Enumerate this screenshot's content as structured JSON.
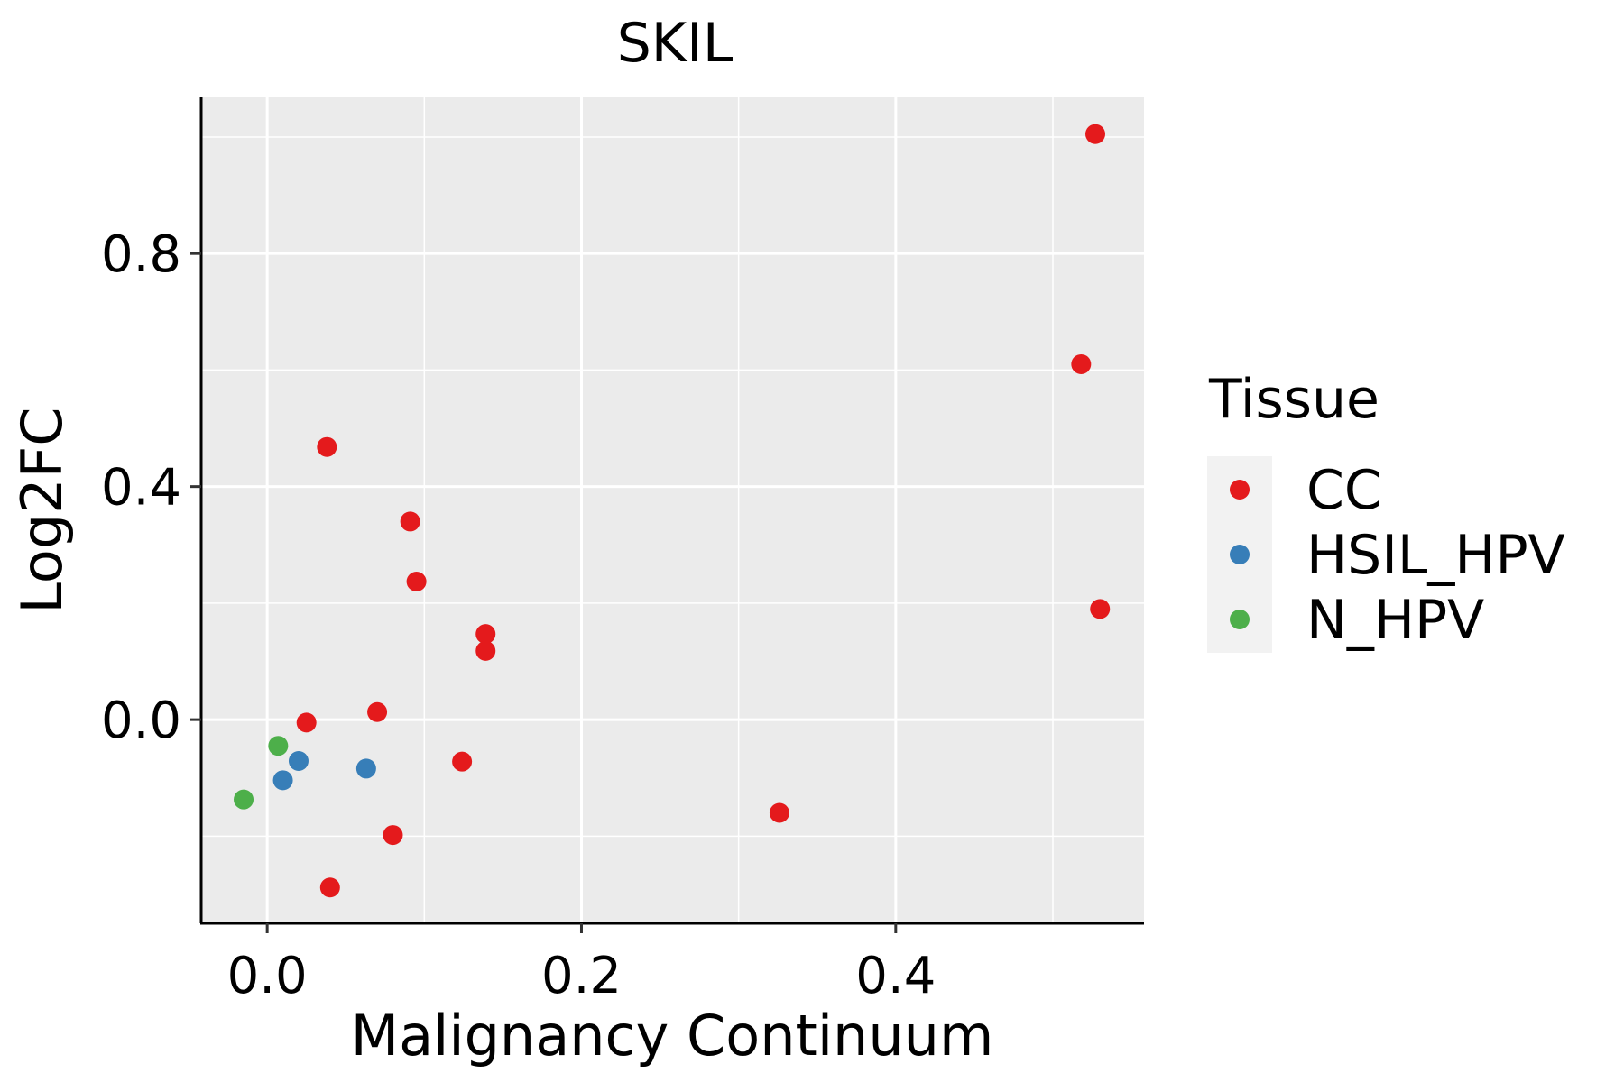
{
  "chart_data": {
    "type": "scatter",
    "title": "SKIL",
    "xlabel": "Malignancy Continuum",
    "ylabel": "Log2FC",
    "xlim": [
      -0.042,
      0.558
    ],
    "ylim": [
      -0.348,
      1.068
    ],
    "xticks": [
      0.0,
      0.2,
      0.4
    ],
    "xtick_labels": [
      "0.0",
      "0.2",
      "0.4"
    ],
    "yticks": [
      0.0,
      0.4,
      0.8
    ],
    "ytick_labels": [
      "0.0",
      "0.4",
      "0.8"
    ],
    "grid": true,
    "legend": {
      "title": "Tissue",
      "position": "right",
      "entries": [
        "CC",
        "HSIL_HPV",
        "N_HPV"
      ]
    },
    "colors": {
      "CC": "#e41a1c",
      "HSIL_HPV": "#377eb8",
      "N_HPV": "#4daf4a",
      "panel": "#ebebeb",
      "grid": "#ffffff"
    },
    "series": [
      {
        "name": "CC",
        "points": [
          {
            "x": 0.527,
            "y": 1.005
          },
          {
            "x": 0.518,
            "y": 0.61
          },
          {
            "x": 0.53,
            "y": 0.19
          },
          {
            "x": 0.038,
            "y": 0.468
          },
          {
            "x": 0.091,
            "y": 0.34
          },
          {
            "x": 0.095,
            "y": 0.237
          },
          {
            "x": 0.139,
            "y": 0.147
          },
          {
            "x": 0.139,
            "y": 0.118
          },
          {
            "x": 0.025,
            "y": -0.005
          },
          {
            "x": 0.07,
            "y": 0.013
          },
          {
            "x": 0.124,
            "y": -0.072
          },
          {
            "x": 0.326,
            "y": -0.16
          },
          {
            "x": 0.08,
            "y": -0.198
          },
          {
            "x": 0.04,
            "y": -0.288
          }
        ]
      },
      {
        "name": "HSIL_HPV",
        "points": [
          {
            "x": 0.02,
            "y": -0.071
          },
          {
            "x": 0.01,
            "y": -0.104
          },
          {
            "x": 0.063,
            "y": -0.084
          }
        ]
      },
      {
        "name": "N_HPV",
        "points": [
          {
            "x": 0.007,
            "y": -0.045
          },
          {
            "x": -0.015,
            "y": -0.137
          }
        ]
      }
    ]
  }
}
